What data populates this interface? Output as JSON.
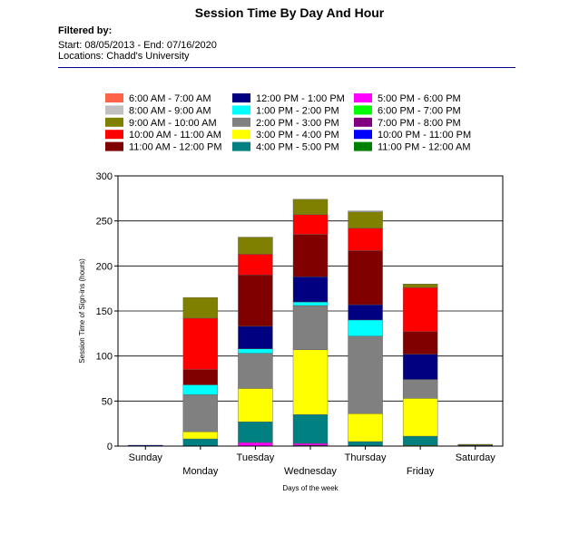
{
  "report": {
    "title": "Session Time By Day And Hour",
    "filtered_by": "Filtered by:",
    "date_range": "Start: 08/05/2013 - End: 07/16/2020",
    "locations": "Locations: Chadd's University"
  },
  "chart_data": {
    "type": "bar",
    "stacked": true,
    "title": "",
    "xlabel": "Days of the week",
    "ylabel": "Session Time of Sign-ins (hours)",
    "ylim": [
      0,
      300
    ],
    "yticks": [
      0,
      50,
      100,
      150,
      200,
      250,
      300
    ],
    "grid": true,
    "legend_position": "top",
    "categories": [
      "Sunday",
      "Monday",
      "Tuesday",
      "Wednesday",
      "Thursday",
      "Friday",
      "Saturday"
    ],
    "series": [
      {
        "name": "6:00 AM - 7:00 AM",
        "color": "#ff6347",
        "values": [
          0,
          0,
          0,
          0,
          0,
          0,
          0
        ]
      },
      {
        "name": "8:00 AM - 9:00 AM",
        "color": "#c0c0c0",
        "values": [
          0,
          0,
          0,
          0,
          1,
          0,
          0
        ]
      },
      {
        "name": "9:00 AM - 10:00 AM",
        "color": "#808000",
        "values": [
          0,
          23,
          19,
          17,
          18,
          4,
          1
        ]
      },
      {
        "name": "10:00 AM - 11:00 AM",
        "color": "#ff0000",
        "values": [
          0,
          57,
          23,
          22,
          25,
          49,
          0
        ]
      },
      {
        "name": "11:00 AM - 12:00 PM",
        "color": "#800000",
        "values": [
          0,
          17,
          57,
          47,
          60,
          25,
          0
        ]
      },
      {
        "name": "12:00 PM - 1:00 PM",
        "color": "#000080",
        "values": [
          0,
          0,
          25,
          28,
          17,
          28,
          1
        ]
      },
      {
        "name": "1:00 PM - 2:00 PM",
        "color": "#00ffff",
        "values": [
          0,
          11,
          5,
          4,
          18,
          0,
          0
        ]
      },
      {
        "name": "2:00 PM - 3:00 PM",
        "color": "#808080",
        "values": [
          0,
          41,
          39,
          49,
          86,
          21,
          0
        ]
      },
      {
        "name": "3:00 PM - 4:00 PM",
        "color": "#ffff00",
        "values": [
          0,
          8,
          37,
          72,
          31,
          42,
          0
        ]
      },
      {
        "name": "4:00 PM - 5:00 PM",
        "color": "#008080",
        "values": [
          0,
          8,
          23,
          32,
          5,
          10,
          0
        ]
      },
      {
        "name": "5:00 PM - 6:00 PM",
        "color": "#ff00ff",
        "values": [
          0,
          0,
          4,
          2,
          0,
          0,
          0
        ]
      },
      {
        "name": "6:00 PM - 7:00 PM",
        "color": "#00ff00",
        "values": [
          0,
          0,
          0,
          0,
          0,
          1,
          0
        ]
      },
      {
        "name": "7:00 PM - 8:00 PM",
        "color": "#800080",
        "values": [
          0,
          0,
          0,
          1,
          0,
          0,
          0
        ]
      },
      {
        "name": "10:00 PM - 11:00 PM",
        "color": "#0000ff",
        "values": [
          1,
          0,
          0,
          0,
          0,
          0,
          0
        ]
      },
      {
        "name": "11:00 PM - 12:00 AM",
        "color": "#008000",
        "values": [
          0,
          0,
          0,
          0,
          0,
          0,
          0
        ]
      }
    ]
  }
}
